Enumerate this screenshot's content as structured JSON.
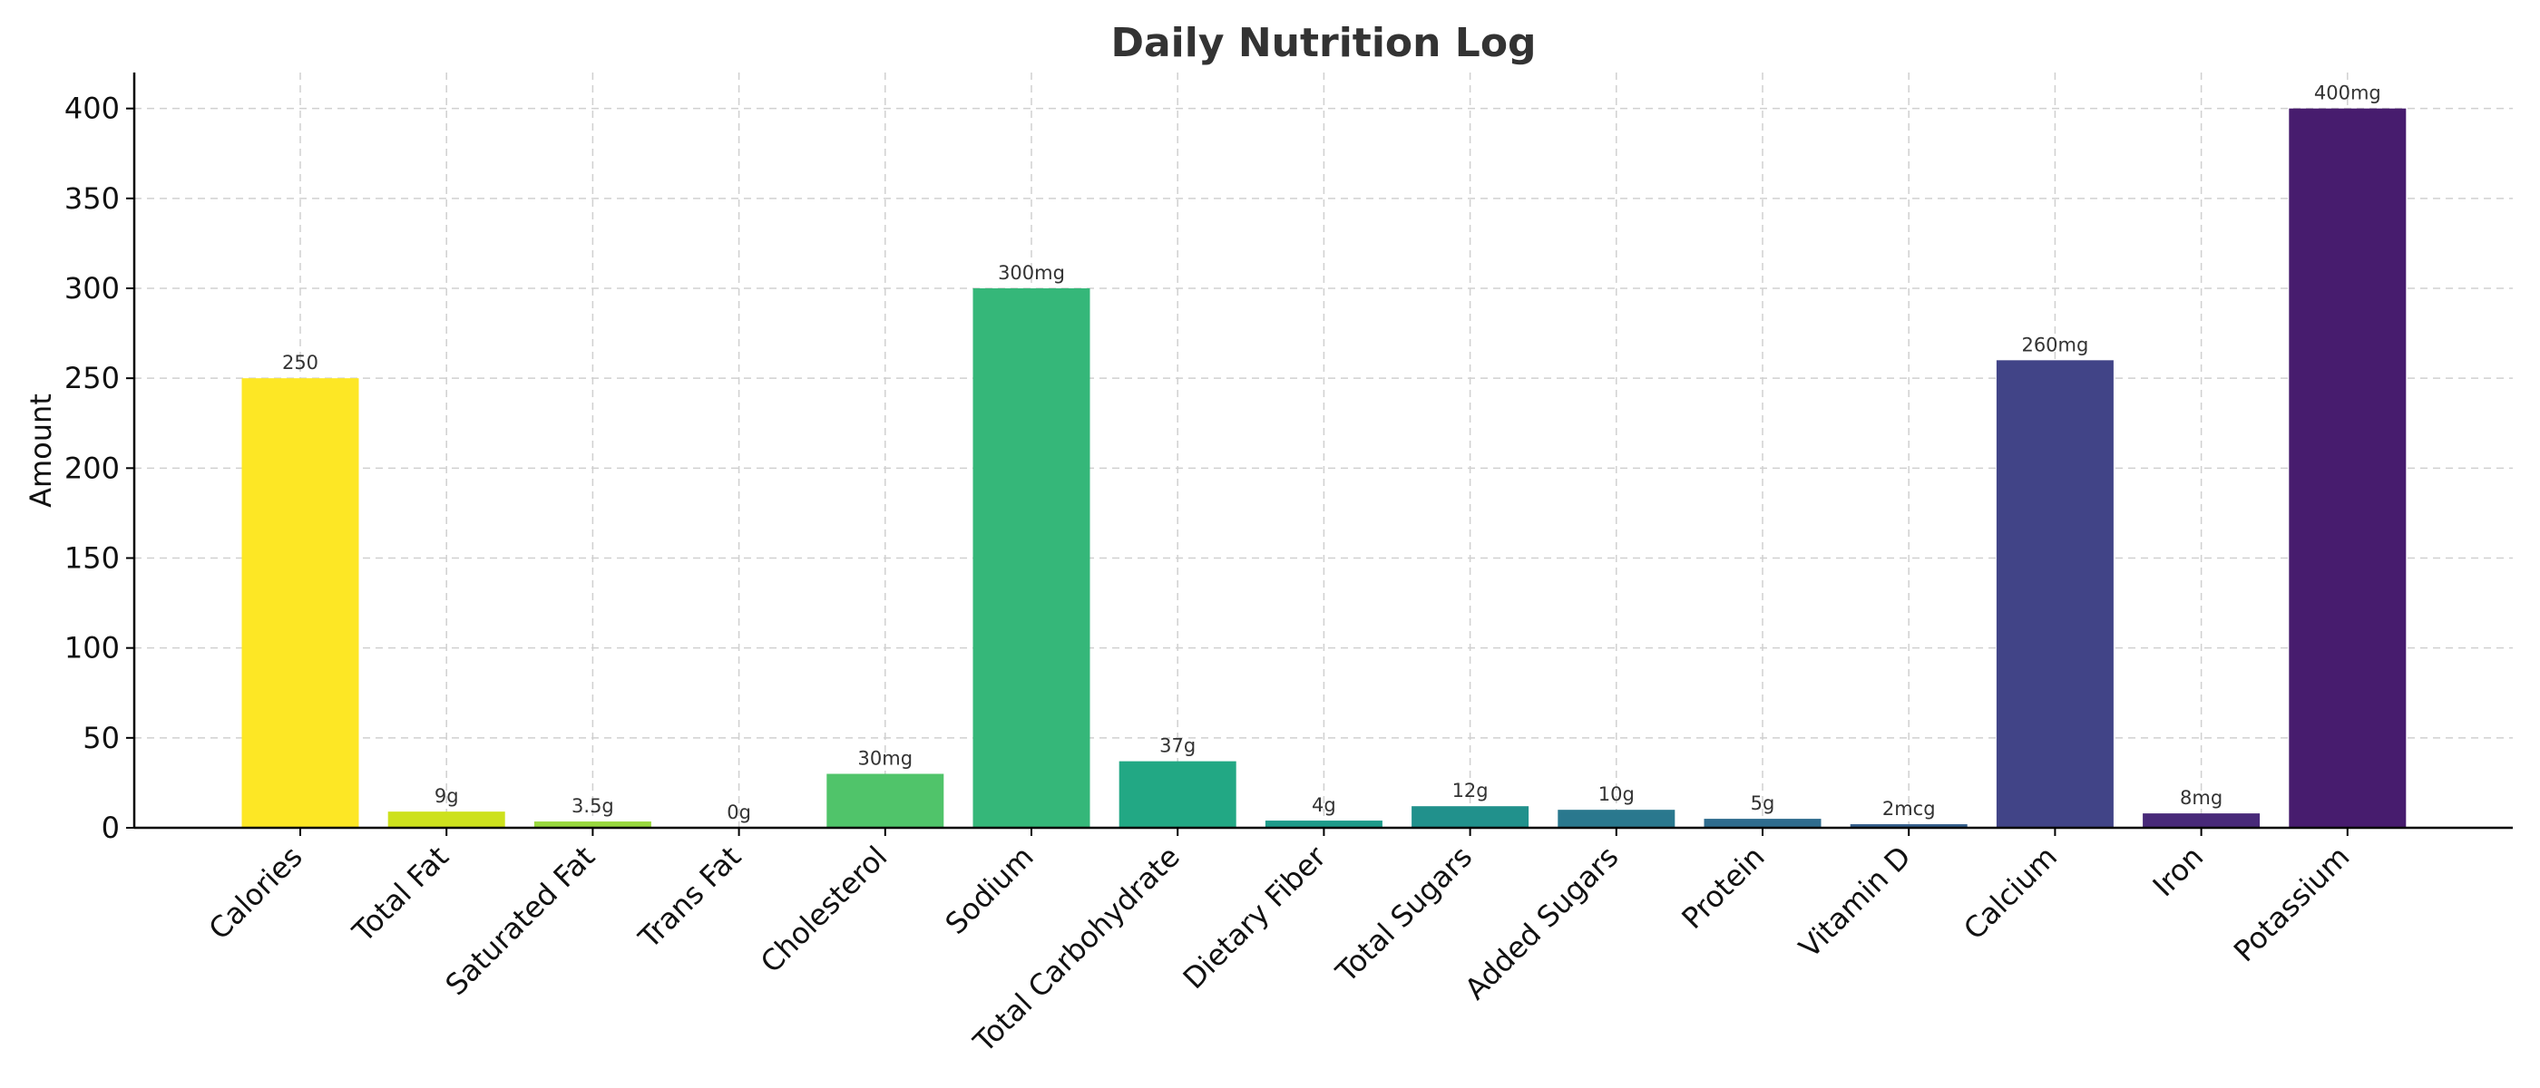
{
  "chart_data": {
    "type": "bar",
    "title": "Daily Nutrition Log",
    "xlabel": "",
    "ylabel": "Amount",
    "ylim": [
      0,
      420
    ],
    "yticks": [
      0,
      50,
      100,
      150,
      200,
      250,
      300,
      350,
      400
    ],
    "grid": true,
    "categories": [
      "Calories",
      "Total Fat",
      "Saturated Fat",
      "Trans Fat",
      "Cholesterol",
      "Sodium",
      "Total Carbohydrate",
      "Dietary Fiber",
      "Total Sugars",
      "Added Sugars",
      "Protein",
      "Vitamin D",
      "Calcium",
      "Iron",
      "Potassium"
    ],
    "values": [
      250,
      9,
      3.5,
      0,
      30,
      300,
      37,
      4,
      12,
      10,
      5,
      2,
      260,
      8,
      400
    ],
    "data_labels": [
      "250",
      "9g",
      "3.5g",
      "0g",
      "30mg",
      "300mg",
      "37g",
      "4g",
      "12g",
      "10g",
      "5g",
      "2mcg",
      "260mg",
      "8mg",
      "400mg"
    ],
    "colors": [
      "#fde725",
      "#cde11d",
      "#98d83e",
      "#67cc5c",
      "#50c46a",
      "#35b779",
      "#22a884",
      "#1e9b8a",
      "#21918c",
      "#2a788e",
      "#2f6c8e",
      "#355f8d",
      "#414487",
      "#482979",
      "#471c6e"
    ]
  }
}
